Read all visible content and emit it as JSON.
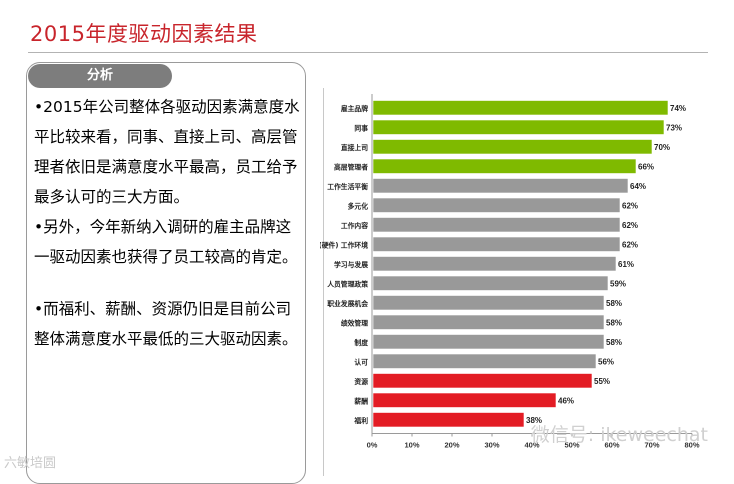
{
  "title": "2015年度驱动因素结果",
  "panel": {
    "tag": "分析",
    "bullets": [
      "•2015年公司整体各驱动因素满意度水平比较来看，同事、直接上司、高层管理者依旧是满意度水平最高，员工给予最多认可的三大方面。",
      "•另外，今年新纳入调研的雇主品牌这一驱动因素也获得了员工较高的肯定。",
      "•而福利、薪酬、资源仍旧是目前公司整体满意度水平最低的三大驱动因素。"
    ]
  },
  "watermark": "微信号: ikeweechat",
  "logo": "六敏培圆",
  "colors": {
    "green": "#7fba00",
    "gray": "#999999",
    "red": "#e31c24"
  },
  "chart_data": {
    "type": "bar",
    "orientation": "horizontal",
    "categories": [
      "雇主品牌",
      "同事",
      "直接上司",
      "高层管理者",
      "工作生活平衡",
      "多元化",
      "工作内容",
      "(硬件) 工作环境",
      "学习与发展",
      "人员管理政策",
      "职业发展机会",
      "绩效管理",
      "制度",
      "认可",
      "资源",
      "薪酬",
      "福利"
    ],
    "values": [
      74,
      73,
      70,
      66,
      64,
      62,
      62,
      62,
      61,
      59,
      58,
      58,
      58,
      56,
      55,
      46,
      38
    ],
    "value_labels": [
      "74%",
      "73%",
      "70%",
      "66%",
      "64%",
      "62%",
      "62%",
      "62%",
      "61%",
      "59%",
      "58%",
      "58%",
      "58%",
      "56%",
      "55%",
      "46%",
      "38%"
    ],
    "bar_colors": [
      "green",
      "green",
      "green",
      "green",
      "gray",
      "gray",
      "gray",
      "gray",
      "gray",
      "gray",
      "gray",
      "gray",
      "gray",
      "gray",
      "red",
      "red",
      "red"
    ],
    "xlim": [
      0,
      80
    ],
    "xticks": [
      0,
      10,
      20,
      30,
      40,
      50,
      60,
      70,
      80
    ],
    "xtick_labels": [
      "0%",
      "10%",
      "20%",
      "30%",
      "40%",
      "50%",
      "60%",
      "70%",
      "80%"
    ],
    "grid": false
  }
}
